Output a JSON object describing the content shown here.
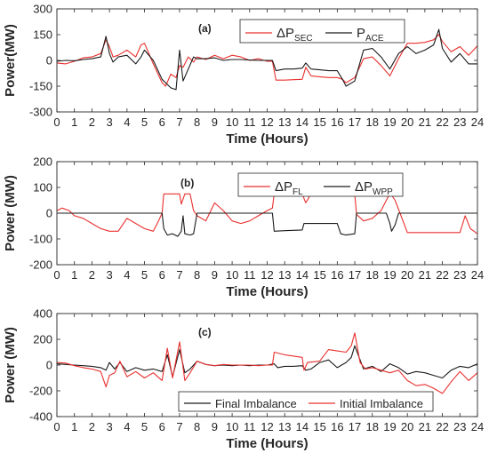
{
  "chart_data": [
    {
      "type": "line",
      "panel_label": "(a)",
      "xlabel": "Time (Hours)",
      "ylabel": "Power(MW)",
      "xlim": [
        0,
        24
      ],
      "ylim": [
        -300,
        300
      ],
      "xticks": [
        0,
        1,
        2,
        3,
        4,
        5,
        6,
        7,
        8,
        9,
        10,
        11,
        12,
        13,
        14,
        15,
        16,
        17,
        18,
        19,
        20,
        21,
        22,
        23,
        24
      ],
      "yticks": [
        -300,
        -150,
        0,
        150,
        300
      ],
      "grid": false,
      "legend_position": "top-right",
      "series": [
        {
          "name_base": "ΔP",
          "name_sub": "SEC",
          "color": "#e8302e",
          "x": [
            0,
            0.5,
            1,
            1.5,
            2,
            2.5,
            2.8,
            3,
            3.2,
            3.5,
            4,
            4.5,
            4.8,
            5,
            5.5,
            6,
            6.2,
            6.5,
            6.8,
            7,
            7.2,
            7.5,
            7.8,
            8,
            8.5,
            9,
            9.5,
            10,
            10.5,
            11,
            11.5,
            12,
            12.3,
            12.5,
            13,
            13.5,
            14,
            14.2,
            14.5,
            15,
            15.5,
            16,
            16.3,
            16.5,
            17,
            17.5,
            18,
            18.5,
            19,
            19.5,
            20,
            20.5,
            21,
            21.5,
            21.8,
            22,
            22.5,
            23,
            23.5,
            24
          ],
          "y": [
            -15,
            -20,
            -5,
            15,
            20,
            40,
            120,
            80,
            20,
            30,
            60,
            20,
            90,
            100,
            -20,
            -130,
            -150,
            -80,
            -100,
            -30,
            -40,
            20,
            -10,
            20,
            5,
            30,
            10,
            30,
            20,
            0,
            10,
            -5,
            -5,
            -115,
            -115,
            -112,
            -110,
            -40,
            -90,
            -95,
            -100,
            -100,
            -110,
            -130,
            -100,
            10,
            20,
            -30,
            -90,
            10,
            100,
            100,
            105,
            120,
            150,
            110,
            50,
            80,
            30,
            85
          ]
        },
        {
          "name_base": "P",
          "name_sub": "ACE",
          "color": "#1a1a1a",
          "x": [
            0,
            0.5,
            1,
            1.5,
            2,
            2.5,
            2.8,
            3,
            3.2,
            3.5,
            4,
            4.5,
            4.8,
            5,
            5.5,
            6,
            6.2,
            6.5,
            6.8,
            7,
            7.2,
            7.5,
            7.8,
            8,
            8.5,
            9,
            9.5,
            10,
            10.5,
            11,
            11.5,
            12,
            12.3,
            12.5,
            13,
            13.5,
            14,
            14.2,
            14.5,
            15,
            15.5,
            16,
            16.3,
            16.5,
            17,
            17.5,
            18,
            18.5,
            19,
            19.5,
            20,
            20.5,
            21,
            21.5,
            21.8,
            22,
            22.5,
            23,
            23.5,
            24
          ],
          "y": [
            -5,
            0,
            -2,
            5,
            10,
            20,
            140,
            40,
            -10,
            20,
            30,
            -20,
            20,
            60,
            0,
            -110,
            -130,
            -160,
            -170,
            60,
            -120,
            -50,
            20,
            10,
            10,
            15,
            0,
            5,
            5,
            2,
            0,
            0,
            0,
            -60,
            -50,
            -50,
            -45,
            -15,
            -50,
            -55,
            -60,
            -60,
            -110,
            -150,
            -120,
            60,
            70,
            20,
            -50,
            40,
            80,
            40,
            60,
            90,
            180,
            70,
            -10,
            40,
            -20,
            -20
          ]
        }
      ]
    },
    {
      "type": "line",
      "panel_label": "(b)",
      "xlabel": "Time (Hours)",
      "ylabel": "Power (MW)",
      "xlim": [
        0,
        24
      ],
      "ylim": [
        -200,
        200
      ],
      "xticks": [
        0,
        1,
        2,
        3,
        4,
        5,
        6,
        7,
        8,
        9,
        10,
        11,
        12,
        13,
        14,
        15,
        16,
        17,
        18,
        19,
        20,
        21,
        22,
        23,
        24
      ],
      "yticks": [
        -200,
        -100,
        0,
        100,
        200
      ],
      "grid": false,
      "legend_position": "top-right",
      "series": [
        {
          "name_base": "ΔP",
          "name_sub": "FL",
          "color": "#e8302e",
          "x": [
            0,
            0.3,
            0.7,
            1,
            1.5,
            2,
            2.5,
            3,
            3.5,
            4,
            4.5,
            5,
            5.5,
            5.8,
            6,
            6.1,
            6.5,
            7,
            7.1,
            7.3,
            7.6,
            7.8,
            8,
            8.5,
            9,
            9.5,
            10,
            10.5,
            11,
            11.5,
            12,
            12.3,
            12.4,
            13,
            13.5,
            14,
            14.2,
            14.5,
            15,
            15.5,
            16,
            16.5,
            17,
            17.1,
            17.5,
            18,
            18.5,
            18.8,
            19,
            19.1,
            19.3,
            20,
            21,
            22,
            23,
            23.3,
            23.6,
            24
          ],
          "y": [
            10,
            20,
            10,
            -10,
            -20,
            -40,
            -60,
            -70,
            -70,
            -20,
            -40,
            -60,
            -70,
            -30,
            0,
            75,
            75,
            75,
            35,
            75,
            75,
            10,
            -10,
            -30,
            40,
            10,
            -30,
            -40,
            -30,
            -10,
            10,
            20,
            75,
            75,
            75,
            75,
            40,
            75,
            75,
            75,
            75,
            75,
            75,
            -5,
            -30,
            -20,
            10,
            50,
            75,
            70,
            50,
            -75,
            -75,
            -75,
            -75,
            -10,
            -60,
            -80
          ]
        },
        {
          "name_base": "ΔP",
          "name_sub": "WPP",
          "color": "#1a1a1a",
          "x": [
            0,
            1,
            2,
            3,
            4,
            5,
            5.8,
            6,
            6.1,
            6.3,
            6.6,
            6.9,
            7.1,
            7.2,
            7.3,
            7.6,
            7.8,
            8,
            12.3,
            12.4,
            13,
            14,
            14.1,
            14.3,
            15.5,
            16,
            16.2,
            16.5,
            17,
            17.1,
            18.8,
            19,
            19.1,
            19.3,
            19.5,
            20,
            24
          ],
          "y": [
            0,
            0,
            0,
            0,
            0,
            0,
            0,
            0,
            -60,
            -85,
            -80,
            -90,
            -70,
            -10,
            -80,
            -85,
            -80,
            0,
            0,
            -70,
            -68,
            -65,
            -40,
            -40,
            -40,
            -40,
            -80,
            -85,
            -80,
            0,
            0,
            -40,
            -70,
            -45,
            0,
            0,
            0
          ]
        }
      ]
    },
    {
      "type": "line",
      "panel_label": "(c)",
      "xlabel": "Time (Hours)",
      "ylabel": "Power (MW)",
      "xlim": [
        0,
        24
      ],
      "ylim": [
        -400,
        400
      ],
      "xticks": [
        0,
        1,
        2,
        3,
        4,
        5,
        6,
        7,
        8,
        9,
        10,
        11,
        12,
        13,
        14,
        15,
        16,
        17,
        18,
        19,
        20,
        21,
        22,
        23,
        24
      ],
      "yticks": [
        -400,
        -200,
        0,
        200,
        400
      ],
      "grid": false,
      "legend_position": "bottom-right",
      "series": [
        {
          "name": "Final Imbalance",
          "color": "#1a1a1a",
          "x": [
            0,
            0.5,
            1,
            1.5,
            2,
            2.5,
            2.8,
            3,
            3.3,
            3.6,
            4,
            4.5,
            5,
            5.5,
            6,
            6.3,
            6.6,
            7,
            7.3,
            7.6,
            8,
            8.5,
            9,
            9.5,
            10,
            10.5,
            11,
            11.5,
            12,
            12.4,
            12.6,
            13,
            13.5,
            14,
            14.2,
            14.5,
            15,
            15.5,
            16,
            16.5,
            16.8,
            17,
            17.5,
            18,
            18.5,
            19,
            19.5,
            20,
            20.5,
            21,
            21.5,
            22,
            22.5,
            23,
            23.5,
            24
          ],
          "y": [
            10,
            5,
            0,
            -5,
            -10,
            -20,
            -40,
            20,
            -30,
            20,
            -50,
            -20,
            -40,
            -30,
            -50,
            80,
            -90,
            120,
            -60,
            -30,
            30,
            5,
            -5,
            0,
            -5,
            0,
            -5,
            0,
            0,
            10,
            -20,
            -10,
            -10,
            -5,
            -40,
            -30,
            20,
            40,
            -20,
            20,
            60,
            150,
            -30,
            -10,
            -50,
            10,
            -20,
            -70,
            -50,
            -60,
            -80,
            -100,
            -40,
            -10,
            -20,
            10
          ]
        },
        {
          "name": "Initial Imbalance",
          "color": "#e8302e",
          "x": [
            0,
            0.5,
            1,
            1.5,
            2,
            2.5,
            2.8,
            3,
            3.3,
            3.6,
            4,
            4.5,
            5,
            5.5,
            6,
            6.3,
            6.6,
            7,
            7.3,
            7.6,
            8,
            8.5,
            9,
            9.5,
            10,
            10.5,
            11,
            11.5,
            12,
            12.3,
            12.4,
            13,
            14,
            14.1,
            14.3,
            15,
            15.5,
            16,
            16.5,
            16.8,
            17,
            17.3,
            17.6,
            18,
            18.5,
            19,
            19.5,
            20,
            20.5,
            21,
            21.5,
            22,
            22.5,
            23,
            23.5,
            24
          ],
          "y": [
            20,
            15,
            -5,
            -20,
            -30,
            -50,
            -170,
            -80,
            -60,
            30,
            -90,
            -50,
            -100,
            -60,
            -120,
            130,
            -100,
            180,
            -120,
            -60,
            30,
            5,
            -5,
            5,
            0,
            0,
            0,
            -5,
            0,
            0,
            100,
            80,
            60,
            -40,
            20,
            30,
            120,
            110,
            100,
            150,
            250,
            20,
            -30,
            -20,
            -40,
            -60,
            -40,
            -120,
            -160,
            -150,
            -180,
            -220,
            -130,
            -50,
            -120,
            -60
          ]
        }
      ]
    }
  ]
}
